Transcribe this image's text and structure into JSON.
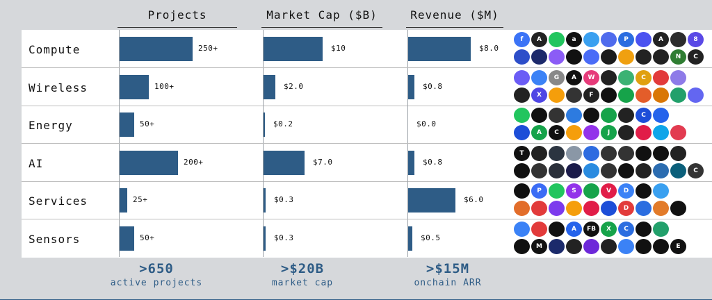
{
  "chart_data": {
    "type": "bar",
    "categories": [
      "Compute",
      "Wireless",
      "Energy",
      "AI",
      "Services",
      "Sensors"
    ],
    "series": [
      {
        "name": "Projects",
        "values": [
          250,
          100,
          50,
          200,
          25,
          50
        ],
        "labels": [
          "250+",
          "100+",
          "50+",
          "200+",
          "25+",
          "50+"
        ]
      },
      {
        "name": "Market Cap ($B)",
        "values": [
          10,
          2.0,
          0.2,
          7.0,
          0.3,
          0.3
        ],
        "labels": [
          "$10",
          "$2.0",
          "$0.2",
          "$7.0",
          "$0.3",
          "$0.3"
        ]
      },
      {
        "name": "Revenue ($M)",
        "values": [
          8.0,
          0.8,
          0.0,
          0.8,
          6.0,
          0.5
        ],
        "labels": [
          "$8.0",
          "$0.8",
          "$0.0",
          "$0.8",
          "$6.0",
          "$0.5"
        ]
      }
    ]
  },
  "headers": [
    "Projects",
    "Market Cap ($B)",
    "Revenue ($M)"
  ],
  "stats": [
    {
      "big": ">650",
      "small": "active projects"
    },
    {
      "big": ">$20B",
      "small": "market cap"
    },
    {
      "big": ">$15M",
      "small": "onchain ARR"
    }
  ],
  "logos": [
    {
      "colors": [
        "#3b73f6",
        "#222",
        "#22c55e",
        "#111",
        "#3aa0f0",
        "#4f6bed",
        "#2b6de0",
        "#4b52f0",
        "#222",
        "#2c2c2c",
        "#5a49e6"
      ],
      "letters": [
        "f",
        "A",
        "",
        "a",
        "",
        "",
        "P",
        "",
        "A",
        "",
        "8"
      ]
    },
    {
      "colors": [
        "#2d4ec9",
        "#1d2a6b",
        "#8b5cf6",
        "#111",
        "#4a6cf7",
        "#1b1b1b",
        "#f0a010",
        "#222",
        "#222",
        "#2f7d32",
        "#222"
      ],
      "letters": [
        "",
        "",
        "",
        "",
        "",
        "",
        "",
        "",
        "",
        "N",
        "C"
      ]
    },
    {
      "colors": [
        "#6b5cf5",
        "#3b82f6",
        "#888",
        "#111",
        "#e63b7a",
        "#222",
        "#3bb273",
        "#e0a010",
        "#e23b3b",
        "#8e7be8"
      ],
      "letters": [
        "",
        "",
        "G",
        "A",
        "W",
        "",
        "",
        "C",
        "",
        ""
      ]
    },
    {
      "colors": [
        "#222",
        "#4f46e5",
        "#f59e0b",
        "#333",
        "#222",
        "#111",
        "#16a34a",
        "#e35d2a",
        "#d97706",
        "#22a06b",
        "#6366f1"
      ],
      "letters": [
        "",
        "X",
        "",
        "",
        "F",
        "",
        "",
        "",
        "",
        "",
        ""
      ]
    },
    {
      "colors": [
        "#22c55e",
        "#111",
        "#333",
        "#2d7be0",
        "#111",
        "#16a34a",
        "#222",
        "#1d4ed8",
        "#2563eb"
      ],
      "letters": [
        "",
        "",
        "",
        "",
        "",
        "",
        "",
        "C",
        ""
      ]
    },
    {
      "colors": [
        "#1d4ed8",
        "#16a34a",
        "#111",
        "#f59e0b",
        "#9333ea",
        "#16a34a",
        "#222",
        "#e11d48",
        "#0ea5e9",
        "#e23b50"
      ],
      "letters": [
        "",
        "A",
        "C",
        "",
        "",
        "J",
        "",
        "",
        "",
        ""
      ]
    },
    {
      "colors": [
        "#111",
        "#222",
        "#2b3440",
        "#8a97a6",
        "#2d6be0",
        "#333",
        "#333",
        "#111",
        "#111",
        "#222"
      ],
      "letters": [
        "T",
        "",
        "",
        "",
        "",
        "",
        "",
        "",
        "",
        ""
      ]
    },
    {
      "colors": [
        "#111",
        "#333",
        "#2a2f3a",
        "#1b1b4a",
        "#2a8be0",
        "#333",
        "#111",
        "#222",
        "#2b6cb0",
        "#0b5f7a",
        "#333"
      ],
      "letters": [
        "",
        "",
        "",
        "",
        "",
        "",
        "",
        "",
        "",
        "",
        "C"
      ]
    },
    {
      "colors": [
        "#111",
        "#3b6cf5",
        "#22c55e",
        "#9333ea",
        "#16a34a",
        "#e11d48",
        "#3b82f6",
        "#111",
        "#3aa0f0"
      ],
      "letters": [
        "",
        "P",
        "",
        "S",
        "",
        "V",
        "D",
        "",
        ""
      ]
    },
    {
      "colors": [
        "#e26d2a",
        "#e23b3b",
        "#7c3aed",
        "#f59e0b",
        "#e11d48",
        "#1d4ed8",
        "#e23b3b",
        "#2b6de0",
        "#e27b2a",
        "#111"
      ],
      "letters": [
        "",
        "",
        "",
        "",
        "",
        "",
        "D",
        "",
        "",
        ""
      ]
    },
    {
      "colors": [
        "#3b82f6",
        "#e23b3b",
        "#111",
        "#2563eb",
        "#111",
        "#16a34a",
        "#2b6de0",
        "#111",
        "#22a06b"
      ],
      "letters": [
        "",
        "",
        "",
        "A",
        "FB",
        "X",
        "C",
        "",
        ""
      ]
    },
    {
      "colors": [
        "#111",
        "#111",
        "#1b2a6b",
        "#222",
        "#6d28d9",
        "#222",
        "#3b82f6",
        "#111",
        "#111",
        "#111"
      ],
      "letters": [
        "",
        "M",
        "",
        "",
        "",
        "",
        "",
        "",
        "",
        "E"
      ]
    }
  ],
  "colors": {
    "bar": "#2e5c86",
    "accent": "#2e5c86",
    "background": "#d6d8db"
  }
}
